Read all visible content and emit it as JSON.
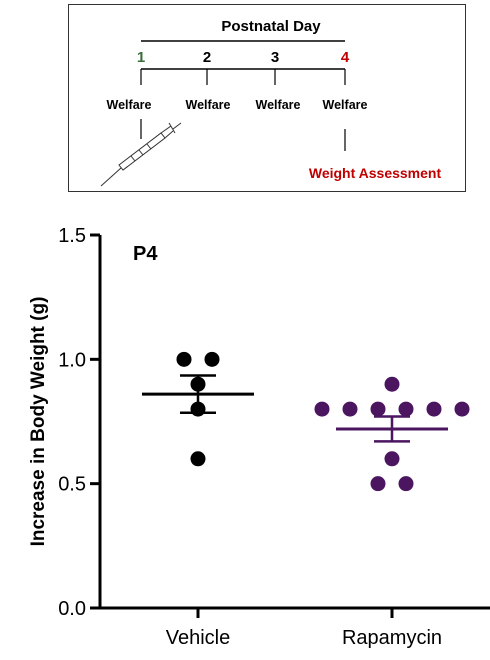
{
  "timeline": {
    "header": "Postnatal Day",
    "days": [
      "1",
      "2",
      "3",
      "4"
    ],
    "day_colors": [
      "#3a6b3a",
      "#000000",
      "#000000",
      "#c00000"
    ],
    "events": [
      "Welfare",
      "Welfare",
      "Welfare",
      "Welfare"
    ],
    "assessment": "Weight Assessment",
    "assessment_color": "#c00000",
    "injection_icon": "syringe-icon"
  },
  "chart_data": {
    "type": "scatter",
    "title": "",
    "annotation": "P4",
    "ylabel": "Increase in Body Weight  (g)",
    "xlabel": "",
    "ylim": [
      0.0,
      1.5
    ],
    "yticks": [
      "0.0",
      "0.5",
      "1.0",
      "1.5"
    ],
    "categories": [
      "Vehicle",
      "Rapamycin"
    ],
    "series": [
      {
        "category": "Vehicle",
        "color": "#000000",
        "values": [
          1.0,
          1.0,
          0.9,
          0.8,
          0.6
        ],
        "mean": 0.86,
        "sem_upper": 0.935,
        "sem_lower": 0.785
      },
      {
        "category": "Rapamycin",
        "color": "#4b1560",
        "values": [
          0.9,
          0.8,
          0.8,
          0.8,
          0.8,
          0.8,
          0.8,
          0.6,
          0.5,
          0.5
        ],
        "mean": 0.72,
        "sem_upper": 0.77,
        "sem_lower": 0.67
      }
    ],
    "grid": false
  }
}
